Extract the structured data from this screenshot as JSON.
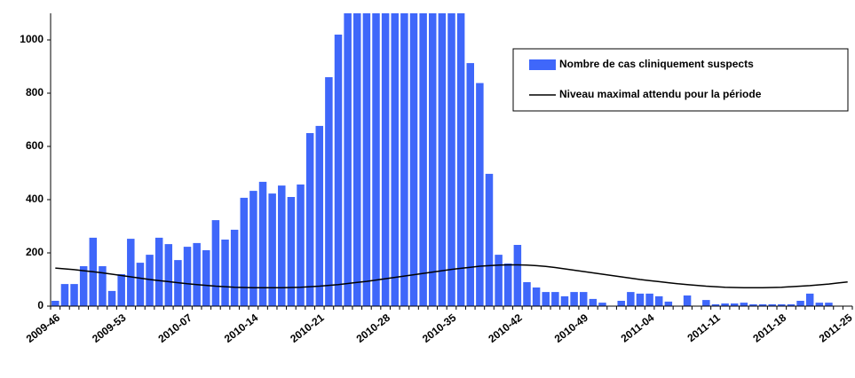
{
  "chart_data": {
    "type": "bar",
    "categories": [
      "2009-46",
      null,
      null,
      null,
      null,
      null,
      null,
      "2009-53",
      null,
      null,
      null,
      null,
      null,
      null,
      "2010-07",
      null,
      null,
      null,
      null,
      null,
      null,
      "2010-14",
      null,
      null,
      null,
      null,
      null,
      null,
      "2010-21",
      null,
      null,
      null,
      null,
      null,
      null,
      "2010-28",
      null,
      null,
      null,
      null,
      null,
      null,
      "2010-35",
      null,
      null,
      null,
      null,
      null,
      null,
      "2010-42",
      null,
      null,
      null,
      null,
      null,
      null,
      "2010-49",
      null,
      null,
      null,
      null,
      null,
      null,
      "2011-04",
      null,
      null,
      null,
      null,
      null,
      null,
      "2011-11",
      null,
      null,
      null,
      null,
      null,
      null,
      "2011-18",
      null,
      null,
      null,
      null,
      null,
      null,
      "2011-25"
    ],
    "series": [
      {
        "name": "Nombre de cas cliniquement suspects",
        "type": "bar",
        "color": "#3f67fa",
        "values": [
          20,
          83,
          83,
          150,
          257,
          150,
          57,
          120,
          253,
          163,
          193,
          257,
          233,
          173,
          223,
          237,
          210,
          323,
          250,
          287,
          407,
          433,
          467,
          423,
          453,
          410,
          457,
          650,
          677,
          860,
          1020,
          1100,
          1100,
          1100,
          1100,
          1100,
          1100,
          1100,
          1100,
          1100,
          1100,
          1100,
          1100,
          1100,
          913,
          838,
          497,
          193,
          160,
          230,
          90,
          70,
          53,
          53,
          37,
          53,
          53,
          27,
          13,
          0,
          20,
          53,
          47,
          47,
          37,
          17,
          0,
          40,
          0,
          23,
          7,
          10,
          10,
          13,
          7,
          7,
          7,
          7,
          7,
          20,
          47,
          13,
          13,
          0,
          0
        ]
      },
      {
        "name": "Niveau maximal attendu pour la période",
        "type": "line",
        "color": "#000000",
        "values": [
          143,
          140,
          137,
          133,
          129,
          125,
          120,
          115,
          110,
          105,
          100,
          96,
          92,
          88,
          84,
          81,
          78,
          75,
          73,
          71,
          70,
          69,
          69,
          69,
          69,
          70,
          71,
          73,
          75,
          78,
          81,
          85,
          89,
          93,
          98,
          103,
          108,
          113,
          118,
          123,
          128,
          133,
          138,
          142,
          146,
          150,
          152,
          154,
          155,
          155,
          154,
          152,
          149,
          145,
          140,
          135,
          130,
          125,
          120,
          115,
          110,
          105,
          100,
          96,
          92,
          88,
          84,
          81,
          78,
          75,
          73,
          71,
          70,
          69,
          69,
          69,
          70,
          71,
          73,
          75,
          77,
          80,
          83,
          87,
          91
        ]
      }
    ],
    "ylim": [
      0,
      1100
    ],
    "yticks": [
      0,
      200,
      400,
      600,
      800,
      1000
    ]
  }
}
